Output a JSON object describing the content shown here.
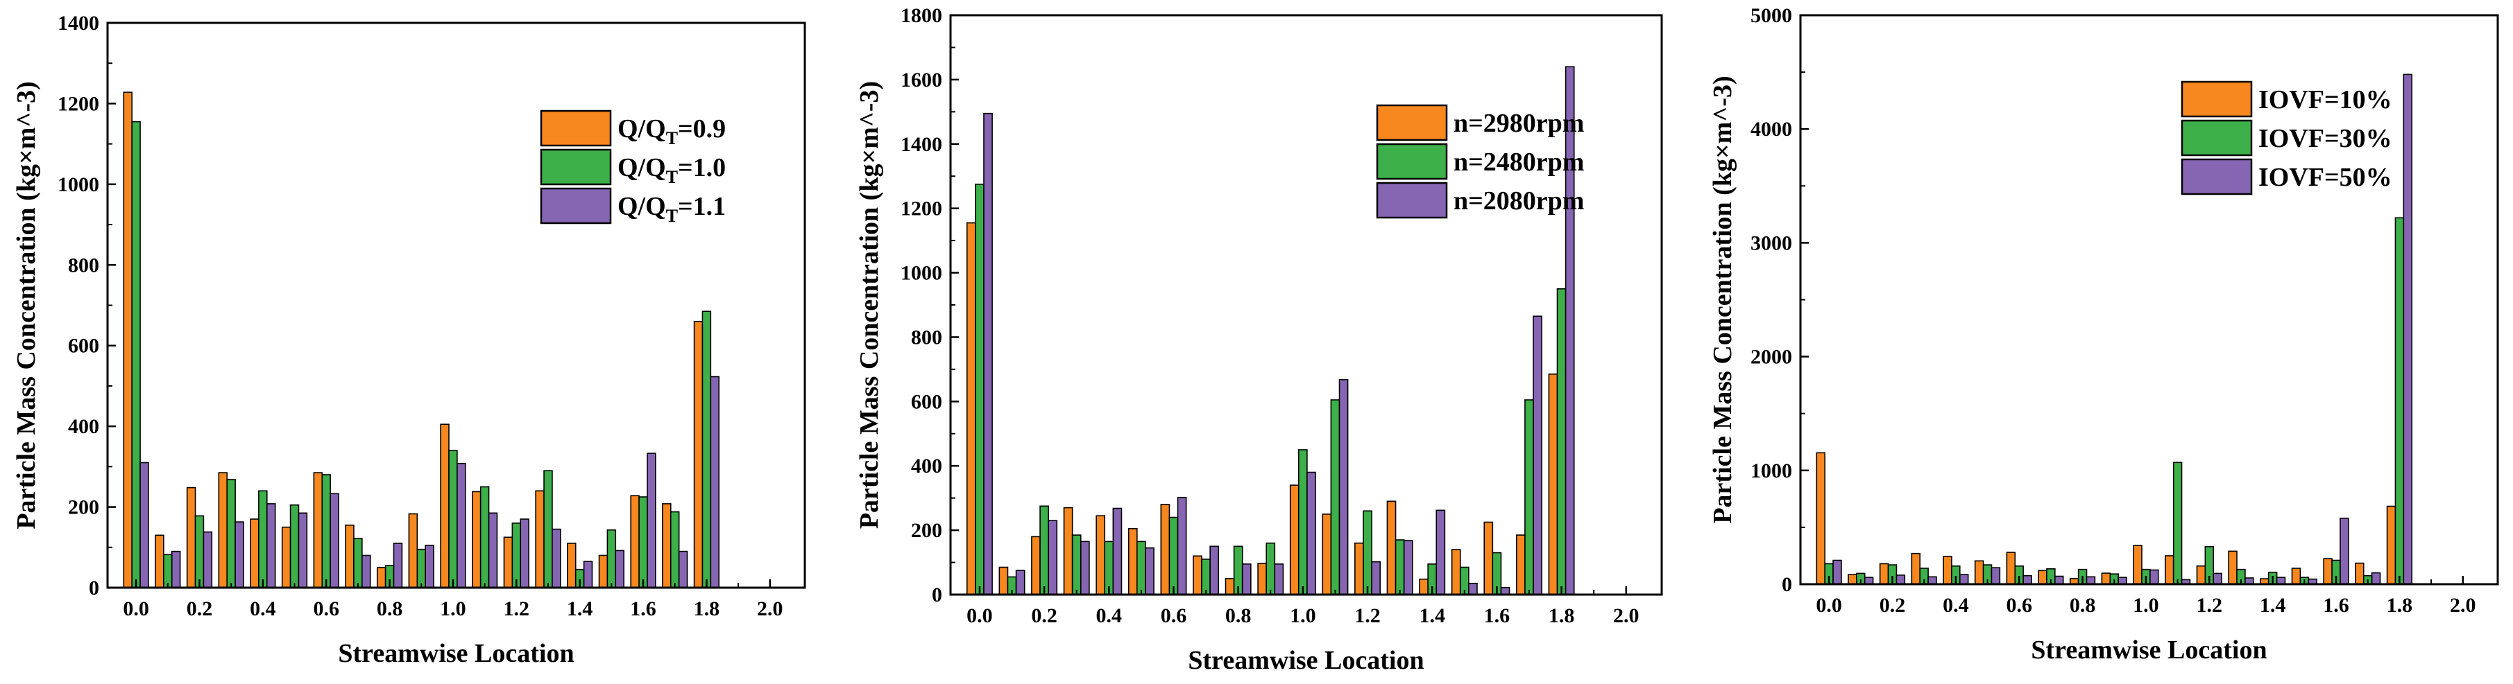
{
  "colors": {
    "orange": "#f7871f",
    "green": "#3db04a",
    "purple": "#8665b3",
    "stroke": "#000000"
  },
  "chart_data": [
    {
      "type": "bar",
      "xlabel": "Streamwise Location",
      "ylabel": "Particle Mass Concentration (kg×m^-3)",
      "ylim": [
        0,
        1400
      ],
      "yticks": [
        0,
        200,
        400,
        600,
        800,
        1000,
        1200,
        1400
      ],
      "xticks": [
        "0.0",
        "0.2",
        "0.4",
        "0.6",
        "0.8",
        "1.0",
        "1.2",
        "1.4",
        "1.6",
        "1.8",
        "2.0"
      ],
      "x": [
        0.0,
        0.1,
        0.2,
        0.3,
        0.4,
        0.5,
        0.6,
        0.7,
        0.8,
        0.9,
        1.0,
        1.1,
        1.2,
        1.3,
        1.4,
        1.5,
        1.6,
        1.7,
        1.8,
        1.9,
        2.0
      ],
      "xlim": [
        -0.09,
        2.11
      ],
      "legend_position": "top-right",
      "series": [
        {
          "label_main": "Q/Q",
          "label_sub": "T",
          "label_tail": "=0.9",
          "color": "#f7871f",
          "values": [
            1228,
            130,
            248,
            285,
            170,
            150,
            285,
            155,
            50,
            183,
            405,
            238,
            125,
            240,
            110,
            80,
            228,
            208,
            660,
            0,
            0
          ]
        },
        {
          "label_main": "Q/Q",
          "label_sub": "T",
          "label_tail": "=1.0",
          "color": "#3db04a",
          "values": [
            1155,
            82,
            178,
            268,
            240,
            205,
            280,
            122,
            55,
            95,
            340,
            250,
            160,
            290,
            45,
            143,
            225,
            188,
            685,
            0,
            0
          ]
        },
        {
          "label_main": "Q/Q",
          "label_sub": "T",
          "label_tail": "=1.1",
          "color": "#8665b3",
          "values": [
            310,
            90,
            138,
            163,
            208,
            185,
            233,
            80,
            110,
            105,
            308,
            185,
            170,
            145,
            65,
            92,
            333,
            90,
            523,
            0,
            0
          ]
        }
      ]
    },
    {
      "type": "bar",
      "xlabel": "Streamwise Location",
      "ylabel": "Particle Mass Concentration (kg×m^-3)",
      "ylim": [
        0,
        1800
      ],
      "yticks": [
        0,
        200,
        400,
        600,
        800,
        1000,
        1200,
        1400,
        1600,
        1800
      ],
      "xticks": [
        "0.0",
        "0.2",
        "0.4",
        "0.6",
        "0.8",
        "1.0",
        "1.2",
        "1.4",
        "1.6",
        "1.8",
        "2.0"
      ],
      "x": [
        0.0,
        0.1,
        0.2,
        0.3,
        0.4,
        0.5,
        0.6,
        0.7,
        0.8,
        0.9,
        1.0,
        1.1,
        1.2,
        1.3,
        1.4,
        1.5,
        1.6,
        1.7,
        1.8,
        1.9,
        2.0
      ],
      "xlim": [
        -0.09,
        2.11
      ],
      "legend_position": "top-right",
      "series": [
        {
          "label_main": "n=2980rpm",
          "color": "#f7871f",
          "values": [
            1155,
            85,
            180,
            270,
            245,
            205,
            280,
            120,
            50,
            97,
            340,
            250,
            160,
            290,
            48,
            140,
            225,
            185,
            685,
            0,
            0
          ]
        },
        {
          "label_main": "n=2480rpm",
          "color": "#3db04a",
          "values": [
            1275,
            55,
            275,
            185,
            165,
            165,
            240,
            110,
            150,
            160,
            450,
            605,
            260,
            170,
            95,
            85,
            130,
            605,
            950,
            0,
            0
          ]
        },
        {
          "label_main": "n=2080rpm",
          "color": "#8665b3",
          "values": [
            1495,
            75,
            230,
            165,
            268,
            145,
            302,
            150,
            95,
            95,
            380,
            668,
            102,
            168,
            262,
            35,
            22,
            865,
            1640,
            0,
            0
          ]
        }
      ]
    },
    {
      "type": "bar",
      "xlabel": "Streamwise Location",
      "ylabel": "Particle Mass Concentration (kg×m^-3)",
      "ylim": [
        0,
        5000
      ],
      "yticks": [
        0,
        1000,
        2000,
        3000,
        4000,
        5000
      ],
      "xticks": [
        "0.0",
        "0.2",
        "0.4",
        "0.6",
        "0.8",
        "1.0",
        "1.2",
        "1.4",
        "1.6",
        "1.8",
        "2.0"
      ],
      "x": [
        0.0,
        0.1,
        0.2,
        0.3,
        0.4,
        0.5,
        0.6,
        0.7,
        0.8,
        0.9,
        1.0,
        1.1,
        1.2,
        1.3,
        1.4,
        1.5,
        1.6,
        1.7,
        1.8,
        1.9,
        2.0
      ],
      "xlim": [
        -0.09,
        2.11
      ],
      "legend_position": "top-right",
      "series": [
        {
          "label_main": "IOVF=10%",
          "color": "#f7871f",
          "values": [
            1155,
            85,
            180,
            270,
            245,
            205,
            280,
            120,
            50,
            97,
            340,
            250,
            160,
            290,
            48,
            140,
            225,
            185,
            685,
            0,
            0
          ]
        },
        {
          "label_main": "IOVF=30%",
          "color": "#3db04a",
          "values": [
            180,
            95,
            170,
            140,
            160,
            170,
            160,
            135,
            130,
            90,
            130,
            1070,
            330,
            130,
            105,
            60,
            210,
            75,
            3220,
            0,
            0
          ]
        },
        {
          "label_main": "IOVF=50%",
          "color": "#8665b3",
          "values": [
            210,
            60,
            80,
            65,
            85,
            145,
            75,
            70,
            65,
            60,
            125,
            40,
            95,
            55,
            60,
            45,
            580,
            100,
            4480,
            0,
            0
          ]
        }
      ]
    }
  ]
}
